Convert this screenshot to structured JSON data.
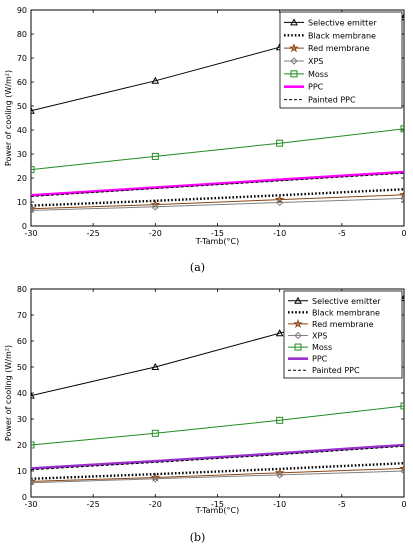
{
  "chart_data": [
    {
      "type": "line",
      "caption": "(a)",
      "xlabel": "T-Tamb(°C)",
      "ylabel": "Power of cooling (W/m²)",
      "xlim": [
        -30,
        0
      ],
      "ylim": [
        0,
        90
      ],
      "xticks": [
        -30,
        -25,
        -20,
        -15,
        -10,
        -5,
        0
      ],
      "yticks": [
        0,
        10,
        20,
        30,
        40,
        50,
        60,
        70,
        80,
        90
      ],
      "grid": false,
      "legend_position": "top-right",
      "x": [
        -30,
        -20,
        -10,
        0
      ],
      "series": [
        {
          "name": "Selective emitter",
          "values": [
            48,
            60.5,
            74.5,
            87
          ],
          "color": "#000000",
          "style": "solid",
          "marker": "triangle",
          "width": 1
        },
        {
          "name": "Black membrane",
          "values": [
            8.5,
            10.5,
            12.8,
            15.3
          ],
          "color": "#000000",
          "style": "dotted",
          "marker": "none",
          "width": 2.4
        },
        {
          "name": "Red membrane",
          "values": [
            7.2,
            8.9,
            11,
            13
          ],
          "color": "#8b4513",
          "style": "solid",
          "marker": "star",
          "width": 1
        },
        {
          "name": "XPS",
          "values": [
            6.5,
            8,
            9.8,
            11.5
          ],
          "color": "#808080",
          "style": "solid",
          "marker": "diamond",
          "width": 1
        },
        {
          "name": "Moss",
          "values": [
            23.5,
            29,
            34.5,
            40.5
          ],
          "color": "#228b22",
          "style": "solid",
          "marker": "square",
          "width": 1
        },
        {
          "name": "PPC",
          "values": [
            12.8,
            16,
            19.3,
            22.5
          ],
          "color": "#ff00ff",
          "style": "solid",
          "marker": "none",
          "width": 2.6
        },
        {
          "name": "Painted PPC",
          "values": [
            12.3,
            15.6,
            18.8,
            22
          ],
          "color": "#000000",
          "style": "dashed",
          "marker": "none",
          "width": 1
        }
      ]
    },
    {
      "type": "line",
      "caption": "(b)",
      "xlabel": "T-Tamb(°C)",
      "ylabel": "Power of cooling (W/m²)",
      "xlim": [
        -30,
        0
      ],
      "ylim": [
        0,
        80
      ],
      "xticks": [
        -30,
        -25,
        -20,
        -15,
        -10,
        -5,
        0
      ],
      "yticks": [
        0,
        10,
        20,
        30,
        40,
        50,
        60,
        70,
        80
      ],
      "grid": false,
      "legend_position": "top-right",
      "x": [
        -30,
        -20,
        -10,
        0
      ],
      "series": [
        {
          "name": "Selective emitter",
          "values": [
            39,
            50,
            63,
            76.5
          ],
          "color": "#000000",
          "style": "solid",
          "marker": "triangle",
          "width": 1
        },
        {
          "name": "Black membrane",
          "values": [
            7,
            8.8,
            10.8,
            13
          ],
          "color": "#000000",
          "style": "dotted",
          "marker": "none",
          "width": 2.4
        },
        {
          "name": "Red membrane",
          "values": [
            6,
            7.5,
            9.3,
            11
          ],
          "color": "#8b4513",
          "style": "solid",
          "marker": "star",
          "width": 1
        },
        {
          "name": "XPS",
          "values": [
            5.5,
            7,
            8.5,
            10
          ],
          "color": "#808080",
          "style": "solid",
          "marker": "diamond",
          "width": 1
        },
        {
          "name": "Moss",
          "values": [
            20,
            24.5,
            29.5,
            35
          ],
          "color": "#228b22",
          "style": "solid",
          "marker": "square",
          "width": 1
        },
        {
          "name": "PPC",
          "values": [
            11,
            13.8,
            16.8,
            20
          ],
          "color": "#9932cc",
          "style": "solid",
          "marker": "none",
          "width": 2.6
        },
        {
          "name": "Painted PPC",
          "values": [
            10.5,
            13.3,
            16.3,
            19.5
          ],
          "color": "#000000",
          "style": "dashed",
          "marker": "none",
          "width": 1
        }
      ]
    }
  ]
}
